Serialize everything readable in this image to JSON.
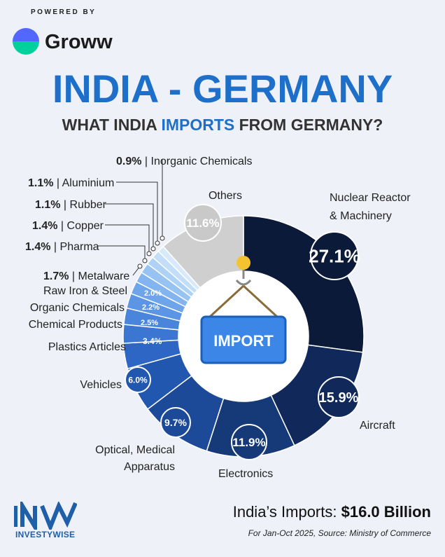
{
  "header": {
    "powered_by": "POWERED BY",
    "brand": "Groww",
    "title": "INDIA - GERMANY",
    "subtitle_pre": "WHAT INDIA ",
    "subtitle_hl": "IMPORTS",
    "subtitle_post": " FROM GERMANY?"
  },
  "center_badge": "IMPORT",
  "chart_data": {
    "type": "pie",
    "categories": [
      "Nuclear Reactor & Machinery",
      "Aircraft",
      "Electronics",
      "Optical, Medical Apparatus",
      "Vehicles",
      "Plastics Articles",
      "Chemical Products",
      "Organic Chemicals",
      "Raw Iron & Steel",
      "Metalware",
      "Pharma",
      "Copper",
      "Rubber",
      "Aluminium",
      "Inorganic Chemicals",
      "Others"
    ],
    "values": [
      27.1,
      15.9,
      11.9,
      9.7,
      6.0,
      3.4,
      2.5,
      2.2,
      2.0,
      1.7,
      1.4,
      1.4,
      1.1,
      1.1,
      0.9,
      11.6
    ],
    "value_labels": [
      "27.1%",
      "15.9%",
      "11.9%",
      "9.7%",
      "6.0%",
      "3.4%",
      "2.5%",
      "2.2%",
      "2.0%",
      "1.7%",
      "1.4%",
      "1.4%",
      "1.1%",
      "1.1%",
      "0.9%",
      "11.6%"
    ],
    "colors": [
      "#0b1a38",
      "#10295a",
      "#163a78",
      "#1c4a98",
      "#2257b0",
      "#2d66c4",
      "#3a76d2",
      "#4a85dc",
      "#5b95e4",
      "#6ea5ea",
      "#82b4ef",
      "#97c3f3",
      "#aed1f6",
      "#c3def9",
      "#d7e9fb",
      "#cfcfcf"
    ],
    "small_labels": [
      "Metalware",
      "Pharma",
      "Copper",
      "Rubber",
      "Aluminium",
      "Inorganic Chemicals"
    ]
  },
  "footer": {
    "brand": "INVESTYWISE",
    "total_label": "India’s Imports: ",
    "total_value": "$16.0 Billion",
    "source": "For Jan-Oct 2025, Source: Ministry of Commerce"
  }
}
